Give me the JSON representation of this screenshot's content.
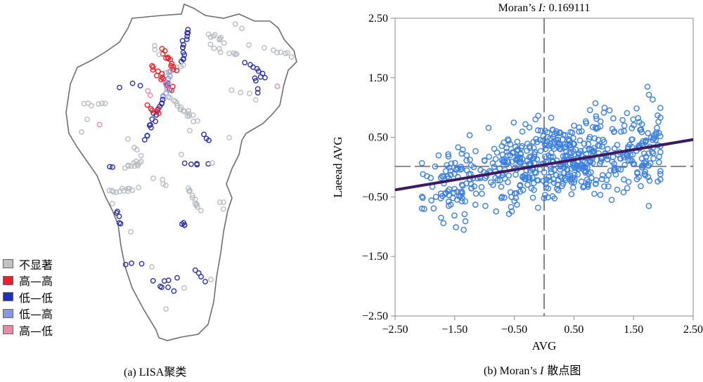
{
  "panel_a": {
    "caption_prefix": "(a) LISA",
    "caption_suffix": "聚类",
    "legend": [
      {
        "label": "不显著",
        "color": "#bfc3c8"
      },
      {
        "label": "高—高",
        "color": "#e8222a"
      },
      {
        "label": "低—低",
        "color": "#1f2fbf"
      },
      {
        "label": "低—高",
        "color": "#8a96e6"
      },
      {
        "label": "高—低",
        "color": "#e88aa8"
      }
    ],
    "point_colors": {
      "ns": "#b8bcc2",
      "hh": "#e8222a",
      "ll": "#2a2fa8",
      "lh": "#8a96e6",
      "hl": "#e88aa8"
    }
  },
  "panel_b": {
    "caption_prefix": "(b) Moran’s ",
    "caption_italic": "I",
    "caption_suffix": " 散点图"
  },
  "chart_data": {
    "type": "scatter",
    "title_prefix": "Moran’s ",
    "title_italic": "I:",
    "title_value": " 0.169111",
    "xlabel": "AVG",
    "ylabel": "Laeead AVG",
    "xlim": [
      -2.5,
      2.5
    ],
    "ylim": [
      -2.5,
      2.5
    ],
    "xticks": [
      "−2.50",
      "−1.50",
      "−0.50",
      "0.50",
      "1.50",
      "2.50"
    ],
    "yticks": [
      "2.50",
      "1.50",
      "0.50",
      "−0.50",
      "−1.50",
      "−2.50"
    ],
    "xtick_values": [
      -2.5,
      -1.5,
      -0.5,
      0.5,
      1.5,
      2.5
    ],
    "ytick_values": [
      2.5,
      1.5,
      0.5,
      -0.5,
      -1.5,
      -2.5
    ],
    "reference_lines": {
      "x": 0,
      "y": 0
    },
    "regression": {
      "slope": 0.169111,
      "intercept": 0.04
    },
    "point_color": "#3a7fe0",
    "line_color": "#3b1a5e",
    "point_count": 620
  }
}
